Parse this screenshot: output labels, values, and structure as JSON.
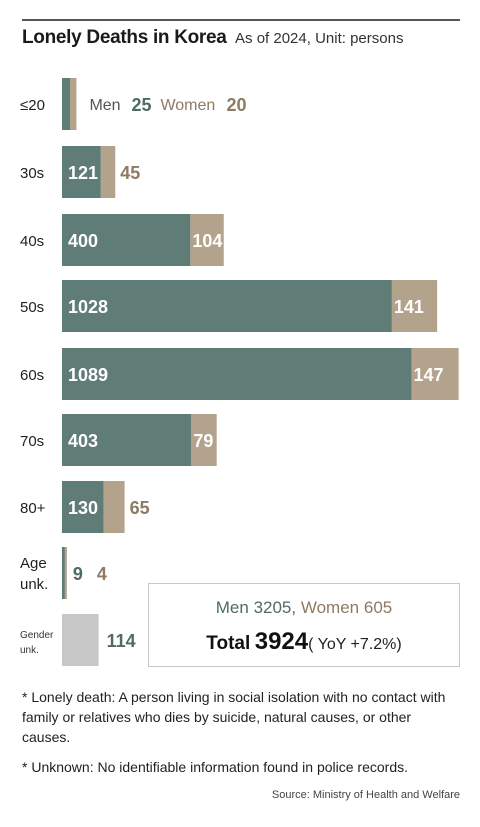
{
  "header": {
    "title": "Lonely Deaths in  Korea",
    "subtitle": "As of 2024, Unit: persons"
  },
  "colors": {
    "men": "#5f7c77",
    "women": "#b3a28c",
    "gender_unknown": "#c8c8c8"
  },
  "chart_data": {
    "type": "bar",
    "orientation": "horizontal",
    "stacked": true,
    "categories": [
      "≤20",
      "30s",
      "40s",
      "50s",
      "60s",
      "70s",
      "80+",
      "Age unk.",
      "Gender unk."
    ],
    "series": [
      {
        "name": "Men",
        "values": [
          25,
          121,
          400,
          1028,
          1089,
          403,
          130,
          9,
          null
        ]
      },
      {
        "name": "Women",
        "values": [
          20,
          45,
          104,
          141,
          147,
          79,
          65,
          4,
          null
        ]
      },
      {
        "name": "",
        "values": [
          null,
          null,
          null,
          null,
          null,
          null,
          null,
          null,
          114
        ]
      }
    ],
    "legend_labels": {
      "men": "Men",
      "women": "Women"
    },
    "legend_placement": "inline-first-row"
  },
  "totals": {
    "men_label": "Men",
    "men_value": "3205",
    "women_label": "Women",
    "women_value": "605",
    "total_label": "Total",
    "total_value": "3924",
    "yoy_text": "( YoY  +7.2%)"
  },
  "notes": [
    "* Lonely death: A person living in social isolation with no contact with family or relatives who dies by suicide, natural causes, or other causes.",
    "* Unknown: No identifiable information found in police records."
  ],
  "source": "Source: Ministry of Health and Welfare"
}
